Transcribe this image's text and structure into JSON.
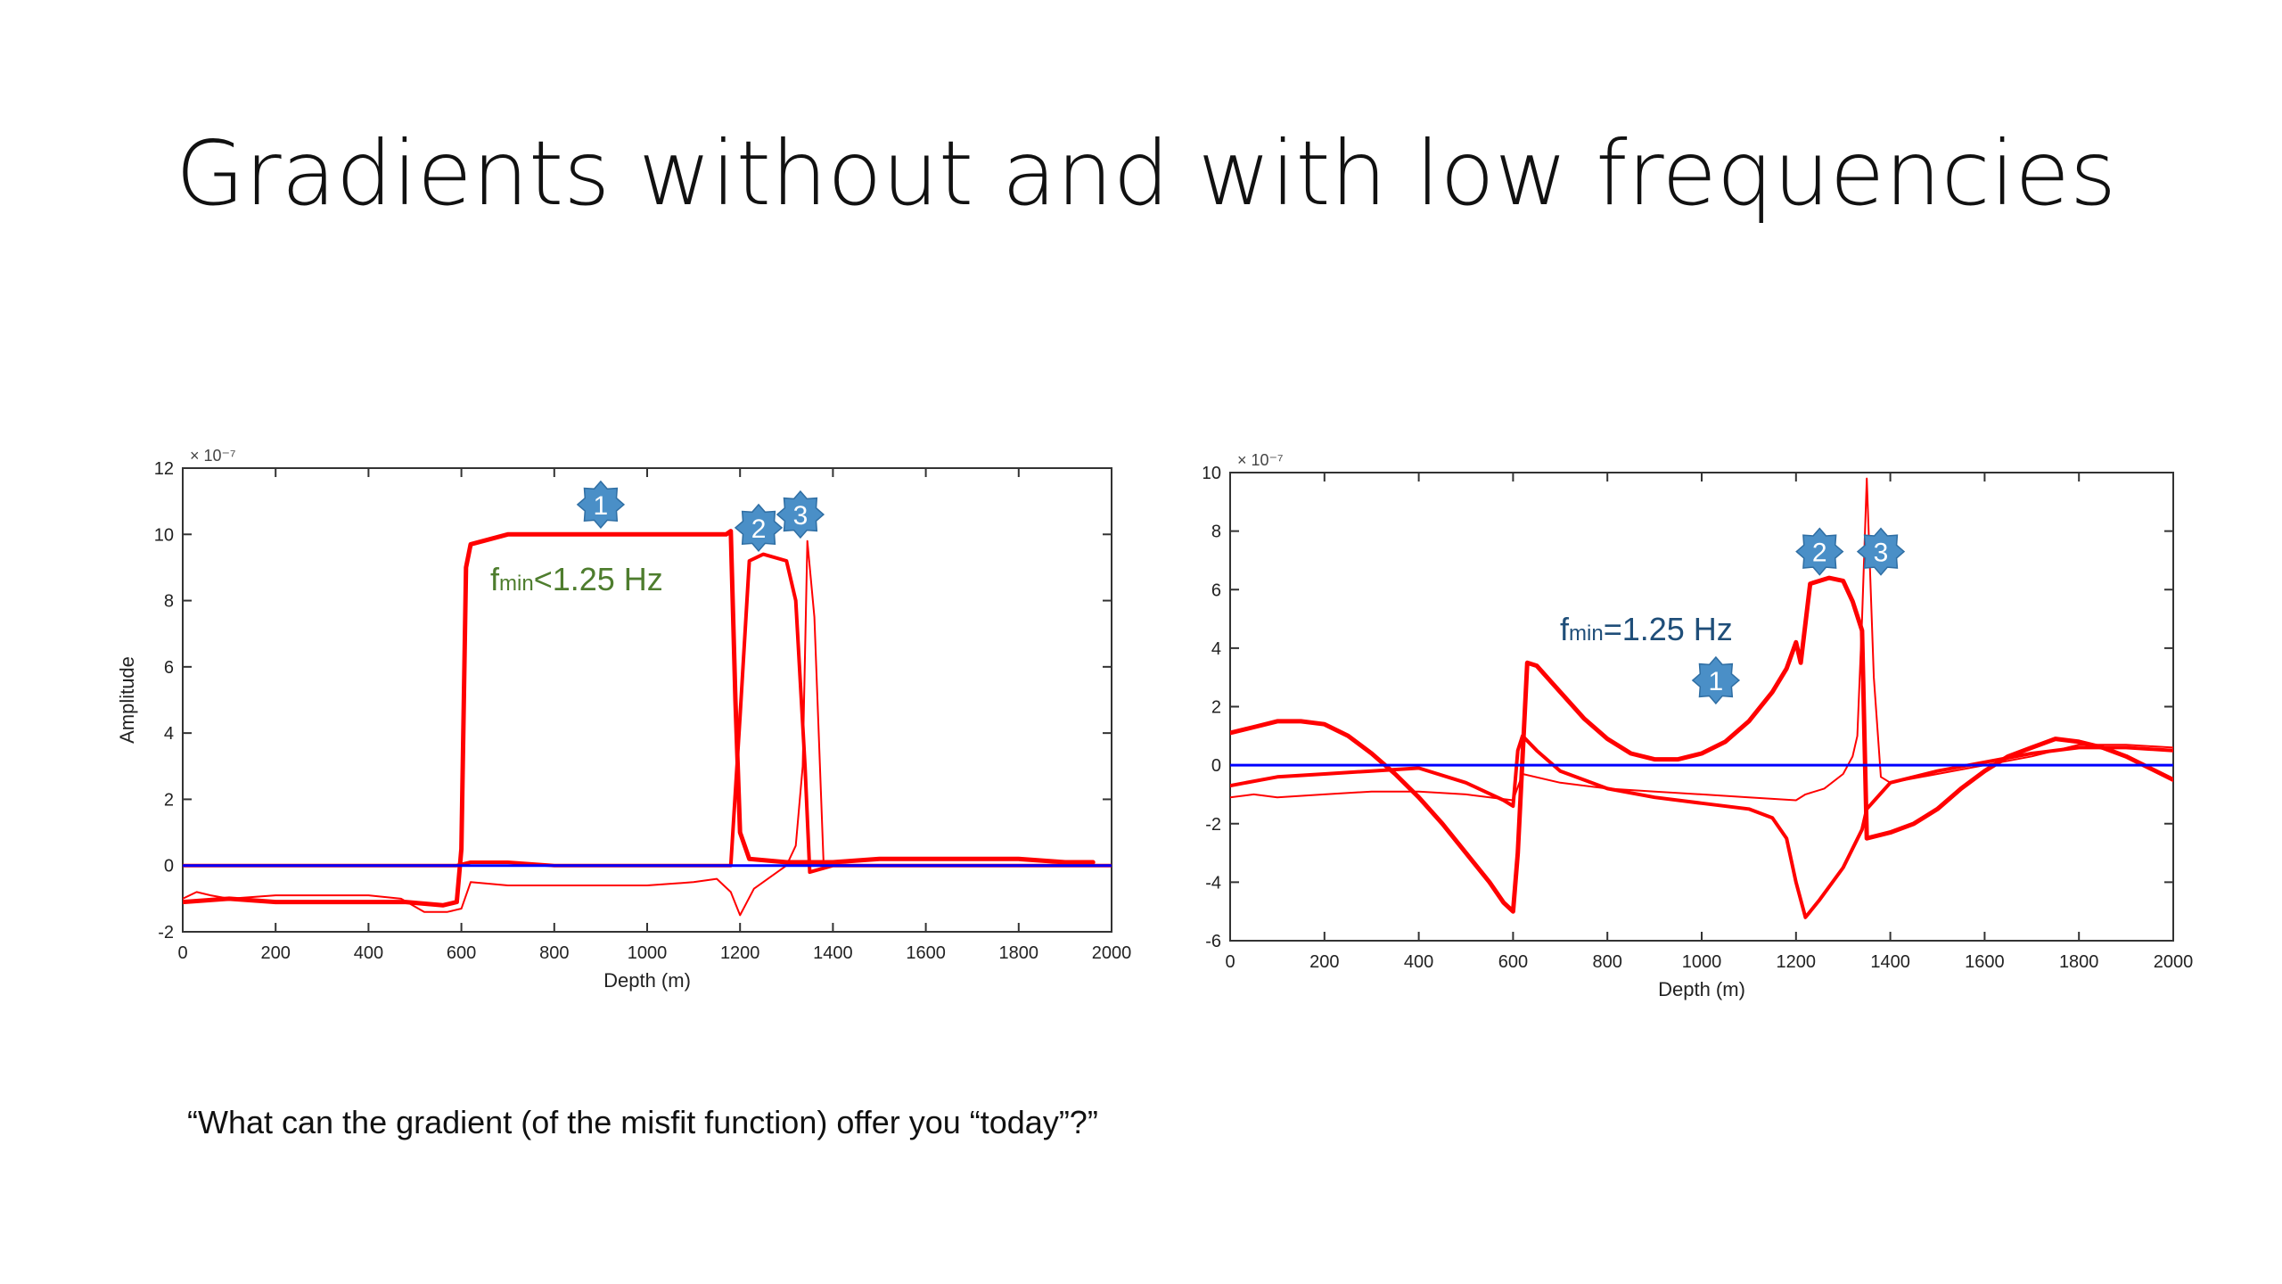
{
  "slide": {
    "title": "Gradients without and with low frequencies",
    "quote": "“What can the gradient (of the misfit function) offer you “today”?”"
  },
  "colors": {
    "gradient": "#ff0000",
    "zero_line": "#0000ff",
    "badge": "#4a8fc7",
    "annotation_left": "#4e7d2e",
    "annotation_right": "#1f4e79"
  },
  "chart_data": [
    {
      "type": "line",
      "xlabel": "Depth (m)",
      "ylabel": "Amplitude",
      "exponent": "× 10⁻⁷",
      "annotation": "fmin<1.25 Hz",
      "annotation_main": "f",
      "annotation_sub": "min",
      "annotation_rest": "<1.25 Hz",
      "xlim": [
        0,
        2000
      ],
      "ylim": [
        -2,
        12
      ],
      "xticks": [
        0,
        200,
        400,
        600,
        800,
        1000,
        1200,
        1400,
        1600,
        1800,
        2000
      ],
      "yticks": [
        -2,
        0,
        2,
        4,
        6,
        8,
        10,
        12
      ],
      "grid": false,
      "markers": [
        {
          "label": "1",
          "x": 900,
          "y": 10.9
        },
        {
          "label": "2",
          "x": 1240,
          "y": 10.2
        },
        {
          "label": "3",
          "x": 1330,
          "y": 10.6
        }
      ],
      "series": [
        {
          "width": 5,
          "color": "#ff0000",
          "x": [
            0,
            100,
            200,
            300,
            400,
            480,
            560,
            590,
            600,
            610,
            620,
            700,
            800,
            900,
            1000,
            1100,
            1170,
            1180,
            1190,
            1200,
            1220,
            1300,
            1400,
            1500,
            1600,
            1700,
            1800,
            1900,
            1960
          ],
          "y": [
            -1.1,
            -1.0,
            -1.1,
            -1.1,
            -1.1,
            -1.1,
            -1.2,
            -1.1,
            0.5,
            9.0,
            9.7,
            10.0,
            10.0,
            10.0,
            10.0,
            10.0,
            10.0,
            10.1,
            5.0,
            1.0,
            0.2,
            0.1,
            0.1,
            0.2,
            0.2,
            0.2,
            0.2,
            0.1,
            0.1
          ]
        },
        {
          "width": 4,
          "color": "#ff0000",
          "x": [
            0,
            300,
            500,
            590,
            620,
            700,
            800,
            900,
            1000,
            1100,
            1180,
            1200,
            1220,
            1250,
            1300,
            1320,
            1340,
            1350,
            1400,
            1600,
            1800,
            2000
          ],
          "y": [
            0,
            0,
            0,
            0,
            0.1,
            0.1,
            0.0,
            0.0,
            0.0,
            0.0,
            0.0,
            4.5,
            9.2,
            9.4,
            9.2,
            8.0,
            3.0,
            -0.2,
            0.0,
            0.0,
            0.0,
            0.0
          ]
        },
        {
          "width": 2,
          "color": "#ff0000",
          "x": [
            0,
            30,
            60,
            100,
            200,
            300,
            400,
            470,
            520,
            570,
            600,
            620,
            700,
            800,
            900,
            1000,
            1100,
            1150,
            1180,
            1200,
            1230,
            1280,
            1300,
            1320,
            1335,
            1345,
            1360,
            1380,
            1400,
            1600,
            1800,
            2000
          ],
          "y": [
            -1.0,
            -0.8,
            -0.9,
            -1.0,
            -0.9,
            -0.9,
            -0.9,
            -1.0,
            -1.4,
            -1.4,
            -1.3,
            -0.5,
            -0.6,
            -0.6,
            -0.6,
            -0.6,
            -0.5,
            -0.4,
            -0.8,
            -1.5,
            -0.7,
            -0.2,
            0.0,
            0.6,
            3.0,
            9.8,
            7.5,
            0.0,
            0.0,
            0.0,
            0.0,
            0.0
          ]
        },
        {
          "width": 3,
          "color": "#0000ff",
          "x": [
            0,
            2000
          ],
          "y": [
            0,
            0
          ]
        }
      ]
    },
    {
      "type": "line",
      "xlabel": "Depth (m)",
      "ylabel": "",
      "exponent": "× 10⁻⁷",
      "annotation": "fmin=1.25 Hz",
      "annotation_main": "f",
      "annotation_sub": "min",
      "annotation_rest": "=1.25 Hz",
      "xlim": [
        0,
        2000
      ],
      "ylim": [
        -6,
        10
      ],
      "xticks": [
        0,
        200,
        400,
        600,
        800,
        1000,
        1200,
        1400,
        1600,
        1800,
        2000
      ],
      "yticks": [
        -6,
        -4,
        -2,
        0,
        2,
        4,
        6,
        8,
        10
      ],
      "ytick_labels": [
        "-6",
        "-4",
        "-2",
        "0",
        "2",
        "4",
        "6",
        "8",
        "10"
      ],
      "grid": false,
      "markers": [
        {
          "label": "1",
          "x": 1030,
          "y": 2.9
        },
        {
          "label": "2",
          "x": 1250,
          "y": 7.3
        },
        {
          "label": "3",
          "x": 1380,
          "y": 7.3
        }
      ],
      "series": [
        {
          "width": 5,
          "color": "#ff0000",
          "x": [
            0,
            50,
            100,
            150,
            200,
            250,
            300,
            350,
            400,
            450,
            500,
            550,
            580,
            600,
            610,
            630,
            650,
            700,
            750,
            800,
            850,
            900,
            950,
            1000,
            1050,
            1100,
            1150,
            1180,
            1200,
            1210,
            1230,
            1270,
            1300,
            1320,
            1340,
            1350,
            1400,
            1450,
            1500,
            1550,
            1600,
            1650,
            1700,
            1750,
            1800,
            1850,
            1900,
            1950,
            2000
          ],
          "y": [
            1.1,
            1.3,
            1.5,
            1.5,
            1.4,
            1.0,
            0.4,
            -0.3,
            -1.1,
            -2.0,
            -3.0,
            -4.0,
            -4.7,
            -5.0,
            -3.0,
            3.5,
            3.4,
            2.5,
            1.6,
            0.9,
            0.4,
            0.2,
            0.2,
            0.4,
            0.8,
            1.5,
            2.5,
            3.3,
            4.2,
            3.5,
            6.2,
            6.4,
            6.3,
            5.6,
            4.6,
            -2.5,
            -2.3,
            -2.0,
            -1.5,
            -0.8,
            -0.2,
            0.3,
            0.6,
            0.9,
            0.8,
            0.6,
            0.3,
            -0.1,
            -0.5
          ]
        },
        {
          "width": 4,
          "color": "#ff0000",
          "x": [
            0,
            100,
            200,
            300,
            400,
            500,
            580,
            600,
            610,
            620,
            650,
            700,
            800,
            900,
            1000,
            1100,
            1150,
            1180,
            1200,
            1220,
            1250,
            1300,
            1340,
            1350,
            1400,
            1500,
            1600,
            1700,
            1800,
            1900,
            2000
          ],
          "y": [
            -0.7,
            -0.4,
            -0.3,
            -0.2,
            -0.1,
            -0.6,
            -1.2,
            -1.4,
            0.5,
            1.0,
            0.5,
            -0.2,
            -0.8,
            -1.1,
            -1.3,
            -1.5,
            -1.8,
            -2.5,
            -4.0,
            -5.2,
            -4.6,
            -3.5,
            -2.2,
            -1.5,
            -0.6,
            -0.2,
            0.1,
            0.4,
            0.6,
            0.6,
            0.5
          ]
        },
        {
          "width": 2,
          "color": "#ff0000",
          "x": [
            0,
            50,
            100,
            200,
            300,
            400,
            500,
            600,
            620,
            700,
            800,
            900,
            1000,
            1100,
            1200,
            1220,
            1260,
            1300,
            1320,
            1330,
            1340,
            1350,
            1365,
            1380,
            1400,
            1500,
            1600,
            1700,
            1800,
            1900,
            2000
          ],
          "y": [
            -1.1,
            -1.0,
            -1.1,
            -1.0,
            -0.9,
            -0.9,
            -1.0,
            -1.2,
            -0.3,
            -0.6,
            -0.8,
            -0.9,
            -1.0,
            -1.1,
            -1.2,
            -1.0,
            -0.8,
            -0.3,
            0.3,
            1.0,
            5.0,
            9.8,
            3.0,
            -0.4,
            -0.6,
            -0.3,
            0.0,
            0.3,
            0.7,
            0.7,
            0.6
          ]
        },
        {
          "width": 3,
          "color": "#0000ff",
          "x": [
            0,
            2000
          ],
          "y": [
            0,
            0
          ]
        }
      ]
    }
  ]
}
